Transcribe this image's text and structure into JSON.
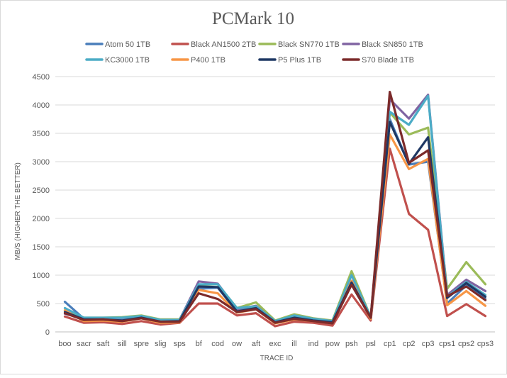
{
  "chart_data": {
    "type": "line",
    "title": "PCMark 10",
    "xlabel": "TRACE ID",
    "ylabel": "MB/S (HIGHER THE BETTER)",
    "ylim": [
      0,
      4500
    ],
    "yticks": [
      0,
      500,
      1000,
      1500,
      2000,
      2500,
      3000,
      3500,
      4000,
      4500
    ],
    "grid": true,
    "legend_position": "top",
    "categories": [
      "boo",
      "sacr",
      "saft",
      "sill",
      "spre",
      "slig",
      "sps",
      "bf",
      "cod",
      "ow",
      "aft",
      "exc",
      "ill",
      "ind",
      "pow",
      "psh",
      "psl",
      "cp1",
      "cp2",
      "cp3",
      "cps1",
      "cps2",
      "cps3"
    ],
    "series": [
      {
        "name": "Atom 50 1TB",
        "color": "#4a7ebb",
        "values": [
          530,
          230,
          230,
          200,
          250,
          190,
          200,
          760,
          780,
          360,
          430,
          170,
          240,
          200,
          160,
          870,
          230,
          3750,
          2950,
          3000,
          500,
          820,
          580
        ]
      },
      {
        "name": "Black AN1500 2TB",
        "color": "#c0504d",
        "values": [
          270,
          160,
          170,
          140,
          190,
          130,
          160,
          500,
          500,
          290,
          330,
          100,
          180,
          160,
          110,
          660,
          200,
          3230,
          2080,
          1800,
          280,
          490,
          280
        ]
      },
      {
        "name": "Black SN770 1TB",
        "color": "#9bbb59",
        "values": [
          380,
          250,
          250,
          260,
          290,
          220,
          220,
          830,
          840,
          420,
          520,
          200,
          310,
          240,
          200,
          1070,
          260,
          3870,
          3480,
          3600,
          760,
          1230,
          840
        ]
      },
      {
        "name": "Black SN850 1TB",
        "color": "#8064a2",
        "values": [
          320,
          240,
          240,
          230,
          270,
          210,
          210,
          890,
          850,
          400,
          460,
          180,
          280,
          230,
          190,
          900,
          240,
          4100,
          3760,
          4180,
          650,
          920,
          720
        ]
      },
      {
        "name": "KC3000 1TB",
        "color": "#4bacc6",
        "values": [
          420,
          250,
          250,
          250,
          280,
          210,
          210,
          840,
          840,
          420,
          450,
          190,
          290,
          230,
          190,
          1000,
          260,
          3880,
          3650,
          4160,
          620,
          880,
          650
        ]
      },
      {
        "name": "P400 1TB",
        "color": "#f79646",
        "values": [
          380,
          190,
          200,
          180,
          240,
          160,
          170,
          740,
          680,
          340,
          400,
          150,
          220,
          190,
          150,
          900,
          230,
          3480,
          2870,
          3050,
          470,
          720,
          460
        ]
      },
      {
        "name": "P5 Plus 1TB",
        "color": "#1f3864",
        "values": [
          350,
          220,
          220,
          200,
          250,
          180,
          190,
          800,
          790,
          360,
          420,
          170,
          250,
          200,
          170,
          870,
          250,
          3700,
          2960,
          3430,
          600,
          860,
          620
        ]
      },
      {
        "name": "S70 Blade 1TB",
        "color": "#7b2a2a",
        "values": [
          330,
          210,
          220,
          190,
          240,
          180,
          180,
          680,
          580,
          350,
          400,
          160,
          230,
          190,
          150,
          830,
          250,
          4230,
          2980,
          3200,
          630,
          800,
          560
        ]
      }
    ]
  }
}
